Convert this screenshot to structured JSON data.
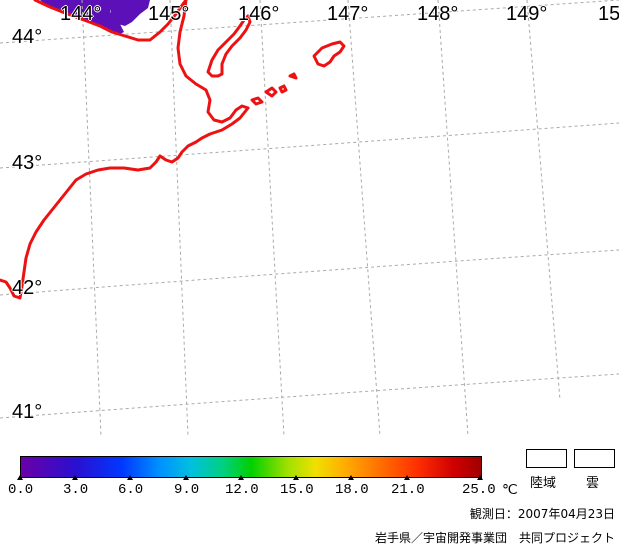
{
  "map": {
    "longitude_labels": [
      "144°",
      "145°",
      "146°",
      "147°",
      "148°",
      "149°",
      "15"
    ],
    "latitude_labels": [
      "44°",
      "43°",
      "42°",
      "41°"
    ],
    "land_color": "#5b10b8",
    "coastline_color": "#ee1111",
    "grid_color": "#aaaaaa"
  },
  "colorbar": {
    "tick_labels": [
      "0.0",
      "3.0",
      "6.0",
      "9.0",
      "12.0",
      "15.0",
      "18.0",
      "21.0",
      "25.0"
    ],
    "unit": "℃",
    "min": 0.0,
    "max": 25.0
  },
  "legend": {
    "land_label": "陸域",
    "cloud_label": "雲"
  },
  "footer": {
    "observation_date": "観測日：2007年04月23日",
    "credit": "岩手県／宇宙開発事業団　共同プロジェクト"
  }
}
